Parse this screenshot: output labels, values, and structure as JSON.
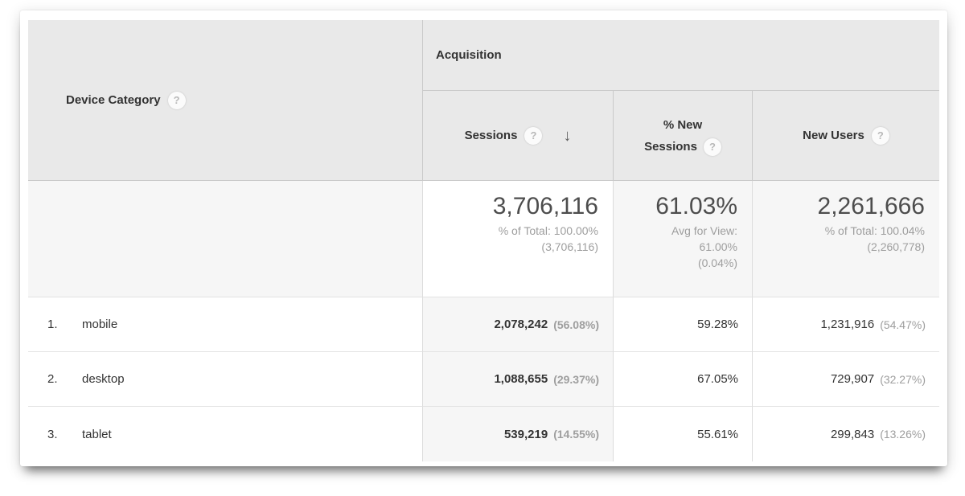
{
  "table": {
    "help_glyph": "?",
    "dimension_header": {
      "label": "Device Category"
    },
    "group_header": {
      "label": "Acquisition"
    },
    "columns": [
      {
        "label": "Sessions",
        "sorted": "descending",
        "sort_arrow": "↓"
      },
      {
        "label_line1": "% New",
        "label_line2": "Sessions"
      },
      {
        "label": "New Users"
      }
    ],
    "summary": {
      "sessions": {
        "value": "3,706,116",
        "line1": "% of Total: 100.00%",
        "line2": "(3,706,116)"
      },
      "new_sessions": {
        "value": "61.03%",
        "line1": "Avg for View:",
        "line2": "61.00%",
        "line3": "(0.04%)"
      },
      "new_users": {
        "value": "2,261,666",
        "line1": "% of Total: 100.04%",
        "line2": "(2,260,778)"
      }
    },
    "rows": [
      {
        "index": "1.",
        "device": "mobile",
        "sessions": "2,078,242",
        "sessions_pct": "(56.08%)",
        "new_sessions": "59.28%",
        "new_users": "1,231,916",
        "new_users_pct": "(54.47%)"
      },
      {
        "index": "2.",
        "device": "desktop",
        "sessions": "1,088,655",
        "sessions_pct": "(29.37%)",
        "new_sessions": "67.05%",
        "new_users": "729,907",
        "new_users_pct": "(32.27%)"
      },
      {
        "index": "3.",
        "device": "tablet",
        "sessions": "539,219",
        "sessions_pct": "(14.55%)",
        "new_sessions": "55.61%",
        "new_users": "299,843",
        "new_users_pct": "(13.26%)"
      }
    ]
  },
  "colors": {
    "header_bg": "#e9e9e9",
    "highlight_cell_bg": "#f6f6f6",
    "text_primary": "#333333",
    "text_value": "#4d4d4d",
    "text_secondary": "#9e9e9e",
    "border_header": "#c9c9c9",
    "border_body": "#e3e3e3"
  }
}
